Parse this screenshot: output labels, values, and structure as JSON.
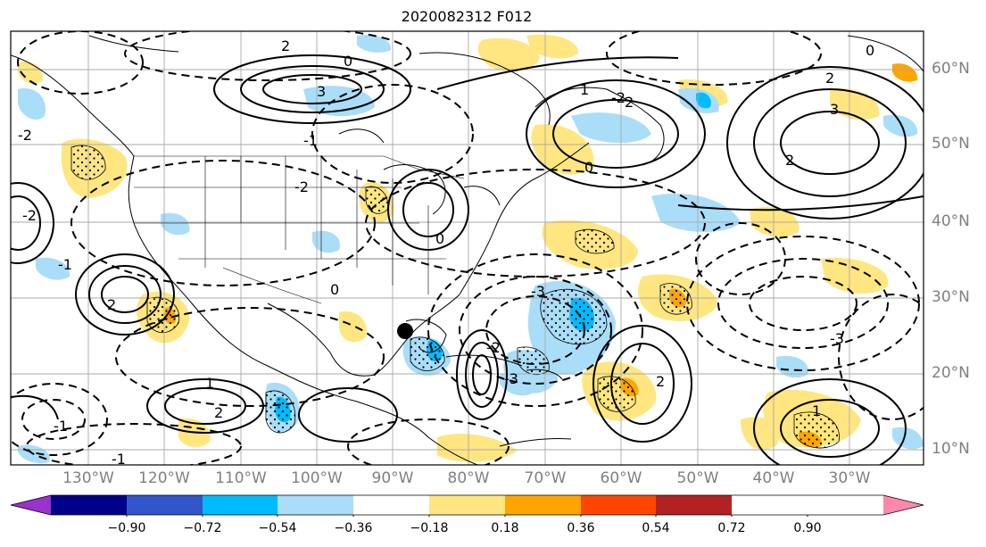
{
  "title": "2020082312 F012",
  "longitude_labels": [
    "130°W",
    "120°W",
    "110°W",
    "100°W",
    "90°W",
    "80°W",
    "70°W",
    "60°W",
    "50°W",
    "40°W",
    "30°W"
  ],
  "latitude_labels": [
    "60°N",
    "50°N",
    "40°N",
    "30°N",
    "20°N",
    "10°N"
  ],
  "colorbar": {
    "tick_labels": [
      "−0.90",
      "−0.72",
      "−0.54",
      "−0.36",
      "−0.18",
      "0.18",
      "0.36",
      "0.54",
      "0.72",
      "0.90"
    ],
    "colors": [
      "#9933cc",
      "#000088",
      "#3355cc",
      "#00bbff",
      "#aaddf8",
      "#ffffff",
      "#ffe680",
      "#ffa500",
      "#ff4500",
      "#b22222",
      "#ff88aa"
    ]
  },
  "map": {
    "projection": "plate carree",
    "extent": {
      "lon_min": -138,
      "lon_max": -16,
      "lat_min": 8,
      "lat_max": 64
    },
    "gridlines": true,
    "contour_style": {
      "positive": "solid",
      "negative": "dashed",
      "color": "#000000"
    },
    "contour_labels": [
      "1",
      "-1",
      "2",
      "-2",
      "3",
      "-3",
      "0",
      "2",
      "0",
      "-1",
      "1",
      "2",
      "-2",
      "-3",
      "2",
      "3",
      "0",
      "-2",
      "1",
      "-1",
      "2",
      "0",
      "-1",
      "2",
      "-2",
      "-3",
      "2",
      "-2",
      "0"
    ],
    "marker": {
      "lon": -88,
      "lat": 25,
      "color": "#000000"
    }
  }
}
